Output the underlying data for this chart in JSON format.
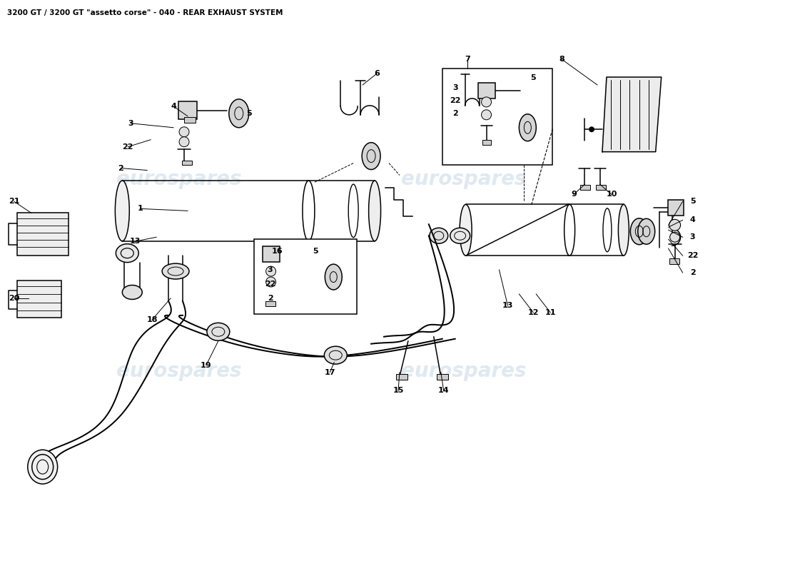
{
  "title": "3200 GT / 3200 GT \"assetto corse\" - 040 - REAR EXHAUST SYSTEM",
  "title_fontsize": 7.5,
  "title_color": "#000000",
  "background_color": "#ffffff",
  "watermark_text": "eurospares",
  "watermark_color": "#b8cfe0",
  "watermark_alpha": 0.45,
  "line_color": "#000000",
  "line_width": 1.1,
  "label_fontsize": 8.0
}
